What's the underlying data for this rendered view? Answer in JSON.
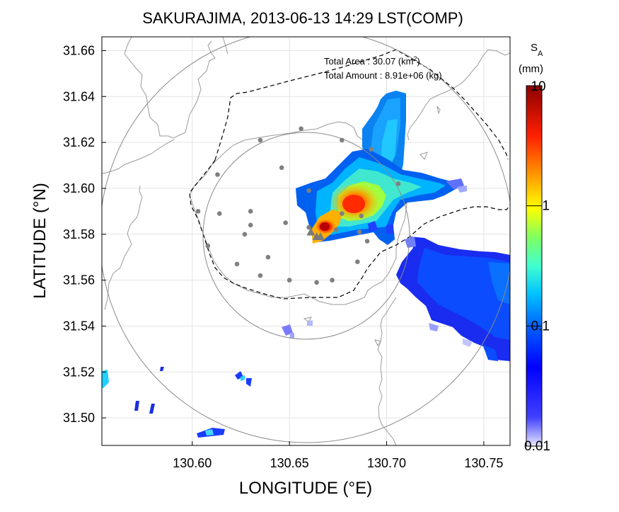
{
  "title": "SAKURAJIMA, 2013-06-13 14:29 LST(COMP)",
  "xlabel": "LONGITUDE (°E)",
  "ylabel": "LATITUDE (°N)",
  "xticks": [
    130.6,
    130.65,
    130.7,
    130.75
  ],
  "xtick_labels": [
    "130.60",
    "130.65",
    "130.70",
    "130.75"
  ],
  "yticks": [
    31.5,
    31.52,
    31.54,
    31.56,
    31.58,
    31.6,
    31.62,
    31.64,
    31.66
  ],
  "ytick_labels": [
    "31.50",
    "31.52",
    "31.54",
    "31.56",
    "31.58",
    "31.60",
    "31.62",
    "31.64",
    "31.66"
  ],
  "xlim": [
    130.5535,
    130.7635
  ],
  "ylim": [
    31.488,
    31.666
  ],
  "annotation": {
    "area_label": "Total Area    : 30.07 (km",
    "area_sup": "2",
    "area_close": ")",
    "amount_label": "Total Amount : 8.91e+06 (kg)"
  },
  "colorbar": {
    "label_main": "S",
    "label_sub": "A",
    "unit": "(mm)",
    "scale": "log",
    "range": [
      0.01,
      10
    ],
    "ticks": [
      0.01,
      0.1,
      1,
      10
    ],
    "tick_labels": [
      "0.01",
      "0.1",
      "1",
      "10"
    ],
    "colors": [
      "#e8e8ff",
      "#0000ff",
      "#00e0ff",
      "#ffff00",
      "#ff2000",
      "#8b0000"
    ]
  },
  "chart_data": {
    "type": "heatmap",
    "variable": "S_A",
    "unit": "mm",
    "stations": [
      [
        130.656,
        31.626
      ],
      [
        130.635,
        31.621
      ],
      [
        130.677,
        31.621
      ],
      [
        130.692,
        31.617
      ],
      [
        130.613,
        31.606
      ],
      [
        130.646,
        31.609
      ],
      [
        130.706,
        31.602
      ],
      [
        130.66,
        31.599
      ],
      [
        130.603,
        31.59
      ],
      [
        130.614,
        31.589
      ],
      [
        130.63,
        31.59
      ],
      [
        130.677,
        31.589
      ],
      [
        130.687,
        31.588
      ],
      [
        130.648,
        31.585
      ],
      [
        130.63,
        31.584
      ],
      [
        130.66,
        31.583
      ],
      [
        130.674,
        31.582
      ],
      [
        130.686,
        31.581
      ],
      [
        130.627,
        31.58
      ],
      [
        130.69,
        31.577
      ],
      [
        130.608,
        31.575
      ],
      [
        130.639,
        31.57
      ],
      [
        130.685,
        31.568
      ],
      [
        130.623,
        31.567
      ],
      [
        130.635,
        31.562
      ],
      [
        130.65,
        31.56
      ],
      [
        130.672,
        31.56
      ],
      [
        130.664,
        31.559
      ]
    ],
    "vents": [
      [
        130.661,
        31.581
      ],
      [
        130.664,
        31.579
      ],
      [
        130.666,
        31.579
      ]
    ],
    "echo_cells": [
      [
        130.702,
        31.64,
        0.08
      ],
      [
        130.706,
        31.63,
        0.1
      ],
      [
        130.703,
        31.62,
        0.12
      ],
      [
        130.699,
        31.612,
        0.15
      ],
      [
        130.694,
        31.606,
        0.25
      ],
      [
        130.688,
        31.601,
        0.45
      ],
      [
        130.684,
        31.595,
        1.8
      ],
      [
        130.683,
        31.593,
        2.8
      ],
      [
        130.68,
        31.591,
        1.2
      ],
      [
        130.675,
        31.587,
        0.7
      ],
      [
        130.67,
        31.583,
        2.2
      ],
      [
        130.667,
        31.581,
        6.0
      ],
      [
        130.665,
        31.578,
        1.2
      ],
      [
        130.712,
        31.598,
        0.09
      ],
      [
        130.722,
        31.6,
        0.07
      ],
      [
        130.731,
        31.599,
        0.05
      ],
      [
        130.739,
        31.6,
        0.03
      ],
      [
        130.662,
        31.596,
        0.05
      ],
      [
        130.656,
        31.594,
        0.04
      ],
      [
        130.7,
        31.585,
        0.2
      ],
      [
        130.705,
        31.58,
        0.06
      ],
      [
        130.728,
        31.566,
        0.03
      ],
      [
        130.745,
        31.563,
        0.04
      ],
      [
        130.758,
        31.56,
        0.05
      ],
      [
        130.735,
        31.553,
        0.03
      ],
      [
        130.752,
        31.548,
        0.04
      ],
      [
        130.745,
        31.537,
        0.03
      ],
      [
        130.761,
        31.53,
        0.04
      ],
      [
        130.709,
        31.555,
        0.05
      ],
      [
        130.645,
        31.539,
        0.02
      ],
      [
        130.627,
        31.517,
        0.03
      ],
      [
        130.606,
        31.495,
        0.03
      ],
      [
        130.556,
        31.517,
        0.15
      ],
      [
        130.572,
        31.503,
        0.02
      ],
      [
        130.58,
        31.503,
        0.02
      ],
      [
        130.585,
        31.52,
        0.02
      ]
    ]
  }
}
